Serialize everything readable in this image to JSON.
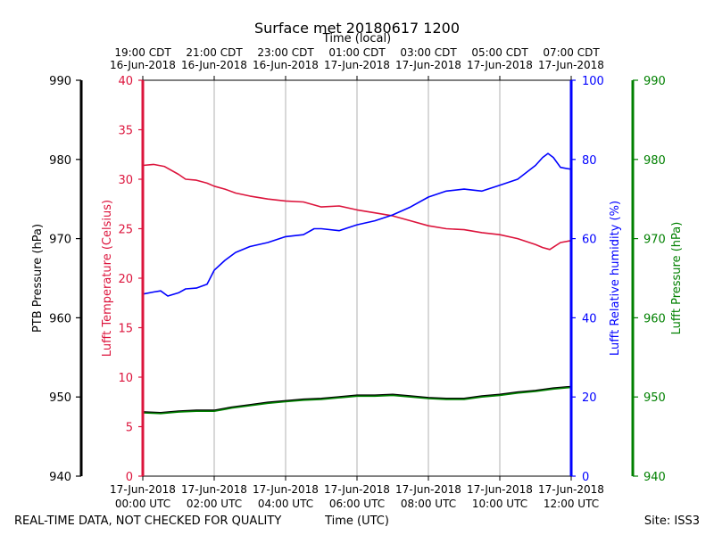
{
  "chart_data": {
    "type": "line",
    "title": "Surface met 20180617 1200",
    "top_axis_label": "Time (local)",
    "bottom_axis_label": "Time (UTC)",
    "footer_left": "REAL-TIME DATA, NOT CHECKED FOR QUALITY",
    "footer_right": "Site: ISS3",
    "x_range_hours": [
      0,
      12
    ],
    "grid": "vertical",
    "bottom_ticks": [
      {
        "h": 0,
        "line1": "17-Jun-2018",
        "line2": "00:00 UTC"
      },
      {
        "h": 2,
        "line1": "17-Jun-2018",
        "line2": "02:00 UTC"
      },
      {
        "h": 4,
        "line1": "17-Jun-2018",
        "line2": "04:00 UTC"
      },
      {
        "h": 6,
        "line1": "17-Jun-2018",
        "line2": "06:00 UTC"
      },
      {
        "h": 8,
        "line1": "17-Jun-2018",
        "line2": "08:00 UTC"
      },
      {
        "h": 10,
        "line1": "17-Jun-2018",
        "line2": "10:00 UTC"
      },
      {
        "h": 12,
        "line1": "17-Jun-2018",
        "line2": "12:00 UTC"
      }
    ],
    "top_ticks": [
      {
        "h": 0,
        "line1": "19:00 CDT",
        "line2": "16-Jun-2018"
      },
      {
        "h": 2,
        "line1": "21:00 CDT",
        "line2": "16-Jun-2018"
      },
      {
        "h": 4,
        "line1": "23:00 CDT",
        "line2": "16-Jun-2018"
      },
      {
        "h": 6,
        "line1": "01:00 CDT",
        "line2": "17-Jun-2018"
      },
      {
        "h": 8,
        "line1": "03:00 CDT",
        "line2": "17-Jun-2018"
      },
      {
        "h": 10,
        "line1": "05:00 CDT",
        "line2": "17-Jun-2018"
      },
      {
        "h": 12,
        "line1": "07:00 CDT",
        "line2": "17-Jun-2018"
      }
    ],
    "axes": {
      "ptb_pressure": {
        "label": "PTB Pressure (hPa)",
        "range": [
          940,
          990
        ],
        "ticks": [
          "940",
          "950",
          "960",
          "970",
          "980",
          "990"
        ],
        "color": "#000000"
      },
      "temperature": {
        "label": "Lufft Temperature (Celsius)",
        "range": [
          0,
          40
        ],
        "ticks": [
          "0",
          "5",
          "10",
          "15",
          "20",
          "25",
          "30",
          "35",
          "40"
        ],
        "color": "#dc143c"
      },
      "humidity": {
        "label": "Lufft Relative humidity (%)",
        "range": [
          0,
          100
        ],
        "ticks": [
          "0",
          "20",
          "40",
          "60",
          "80",
          "100"
        ],
        "color": "#0000ff"
      },
      "lufft_pressure": {
        "label": "Lufft Pressure (hPa)",
        "range": [
          940,
          990
        ],
        "ticks": [
          "940",
          "950",
          "960",
          "970",
          "980",
          "990"
        ],
        "color": "#008000"
      }
    },
    "series": [
      {
        "name": "Lufft Temperature",
        "axis": "temperature",
        "color": "#dc143c",
        "points": [
          [
            0,
            31.4
          ],
          [
            0.3,
            31.5
          ],
          [
            0.6,
            31.3
          ],
          [
            1.0,
            30.5
          ],
          [
            1.2,
            30.0
          ],
          [
            1.5,
            29.9
          ],
          [
            1.8,
            29.6
          ],
          [
            2.0,
            29.3
          ],
          [
            2.3,
            29.0
          ],
          [
            2.6,
            28.6
          ],
          [
            3.0,
            28.3
          ],
          [
            3.5,
            28.0
          ],
          [
            4.0,
            27.8
          ],
          [
            4.5,
            27.7
          ],
          [
            5.0,
            27.2
          ],
          [
            5.5,
            27.3
          ],
          [
            6.0,
            26.9
          ],
          [
            6.5,
            26.6
          ],
          [
            7.0,
            26.3
          ],
          [
            7.5,
            25.8
          ],
          [
            8.0,
            25.3
          ],
          [
            8.5,
            25.0
          ],
          [
            9.0,
            24.9
          ],
          [
            9.5,
            24.6
          ],
          [
            10.0,
            24.4
          ],
          [
            10.5,
            24.0
          ],
          [
            11.0,
            23.4
          ],
          [
            11.2,
            23.1
          ],
          [
            11.4,
            22.9
          ],
          [
            11.7,
            23.6
          ],
          [
            12.0,
            23.8
          ]
        ]
      },
      {
        "name": "Lufft Relative humidity",
        "axis": "humidity",
        "color": "#0000ff",
        "points": [
          [
            0,
            46
          ],
          [
            0.3,
            46.5
          ],
          [
            0.5,
            46.8
          ],
          [
            0.7,
            45.5
          ],
          [
            1.0,
            46.3
          ],
          [
            1.2,
            47.3
          ],
          [
            1.5,
            47.5
          ],
          [
            1.8,
            48.5
          ],
          [
            2.0,
            52.0
          ],
          [
            2.3,
            54.5
          ],
          [
            2.6,
            56.5
          ],
          [
            3.0,
            58.0
          ],
          [
            3.5,
            59.0
          ],
          [
            4.0,
            60.5
          ],
          [
            4.5,
            61.0
          ],
          [
            4.8,
            62.5
          ],
          [
            5.0,
            62.5
          ],
          [
            5.5,
            62.0
          ],
          [
            6.0,
            63.5
          ],
          [
            6.5,
            64.5
          ],
          [
            7.0,
            66.0
          ],
          [
            7.5,
            68.0
          ],
          [
            8.0,
            70.5
          ],
          [
            8.5,
            72.0
          ],
          [
            9.0,
            72.5
          ],
          [
            9.5,
            72.0
          ],
          [
            10.0,
            73.5
          ],
          [
            10.5,
            75.0
          ],
          [
            11.0,
            78.5
          ],
          [
            11.2,
            80.5
          ],
          [
            11.35,
            81.5
          ],
          [
            11.5,
            80.5
          ],
          [
            11.7,
            78.0
          ],
          [
            12.0,
            77.5
          ]
        ]
      },
      {
        "name": "PTB Pressure",
        "axis": "ptb_pressure",
        "color": "#000000",
        "points": [
          [
            0,
            948.1
          ],
          [
            0.5,
            948.0
          ],
          [
            1.0,
            948.2
          ],
          [
            1.5,
            948.3
          ],
          [
            2.0,
            948.3
          ],
          [
            2.5,
            948.7
          ],
          [
            3.0,
            949.0
          ],
          [
            3.5,
            949.3
          ],
          [
            4.0,
            949.5
          ],
          [
            4.5,
            949.7
          ],
          [
            5.0,
            949.8
          ],
          [
            5.5,
            950.0
          ],
          [
            6.0,
            950.2
          ],
          [
            6.5,
            950.2
          ],
          [
            7.0,
            950.3
          ],
          [
            7.5,
            950.1
          ],
          [
            8.0,
            949.9
          ],
          [
            8.5,
            949.8
          ],
          [
            9.0,
            949.8
          ],
          [
            9.5,
            950.1
          ],
          [
            10.0,
            950.3
          ],
          [
            10.5,
            950.6
          ],
          [
            11.0,
            950.8
          ],
          [
            11.5,
            951.1
          ],
          [
            12.0,
            951.3
          ]
        ]
      },
      {
        "name": "Lufft Pressure",
        "axis": "lufft_pressure",
        "color": "#008000",
        "points": [
          [
            0,
            948.0
          ],
          [
            0.5,
            947.9
          ],
          [
            1.0,
            948.1
          ],
          [
            1.5,
            948.2
          ],
          [
            2.0,
            948.2
          ],
          [
            2.5,
            948.6
          ],
          [
            3.0,
            948.9
          ],
          [
            3.5,
            949.2
          ],
          [
            4.0,
            949.4
          ],
          [
            4.5,
            949.6
          ],
          [
            5.0,
            949.7
          ],
          [
            5.5,
            949.9
          ],
          [
            6.0,
            950.1
          ],
          [
            6.5,
            950.1
          ],
          [
            7.0,
            950.2
          ],
          [
            7.5,
            950.0
          ],
          [
            8.0,
            949.8
          ],
          [
            8.5,
            949.7
          ],
          [
            9.0,
            949.7
          ],
          [
            9.5,
            950.0
          ],
          [
            10.0,
            950.2
          ],
          [
            10.5,
            950.5
          ],
          [
            11.0,
            950.7
          ],
          [
            11.5,
            951.0
          ],
          [
            12.0,
            951.2
          ]
        ]
      }
    ]
  }
}
